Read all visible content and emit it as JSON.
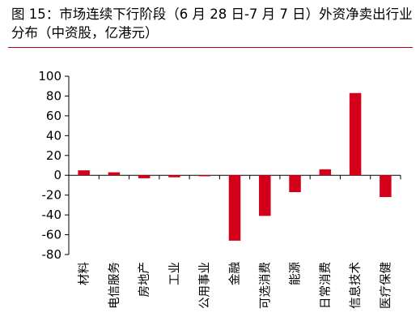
{
  "title": {
    "lines": [
      "图 15：市场连续下行阶段（6 月 28 日-7 月 7 日）外资净卖出行业",
      "分布（中资股，亿港元）"
    ]
  },
  "colors": {
    "bar": "#d40019",
    "title_rule": "#c0001a",
    "axis": "#000000"
  },
  "chart_data": {
    "type": "bar",
    "title": "图 15：市场连续下行阶段（6 月 28 日-7 月 7 日）外资净卖出行业分布（中资股，亿港元）",
    "xlabel": "",
    "ylabel": "",
    "ylim": [
      -80,
      100
    ],
    "yticks": [
      100,
      80,
      60,
      40,
      20,
      0,
      -20,
      -40,
      -60,
      -80
    ],
    "categories": [
      "材料",
      "电信服务",
      "房地产",
      "工业",
      "公用事业",
      "金融",
      "可选消费",
      "能源",
      "日常消费",
      "信息技术",
      "医疗保健"
    ],
    "values": [
      5,
      3,
      -3,
      -2,
      -1,
      -66,
      -41,
      -17,
      6,
      83,
      -22
    ],
    "grid": false,
    "legend": "none"
  }
}
